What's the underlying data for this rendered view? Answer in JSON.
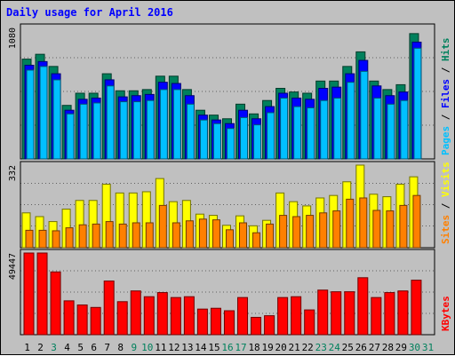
{
  "chart_data": [
    {
      "type": "bar",
      "title": "Daily usage for April 2016",
      "categories": [
        "1",
        "2",
        "3",
        "4",
        "5",
        "6",
        "7",
        "8",
        "9",
        "10",
        "11",
        "12",
        "13",
        "14",
        "15",
        "16",
        "17",
        "18",
        "19",
        "20",
        "21",
        "22",
        "23",
        "24",
        "25",
        "26",
        "27",
        "28",
        "29",
        "30",
        "31"
      ],
      "y_max_label": "1080",
      "ylim": [
        0,
        1080
      ],
      "series": [
        {
          "name": "Hits",
          "color": "#00805c",
          "values": [
            820,
            860,
            760,
            440,
            540,
            540,
            700,
            560,
            560,
            570,
            680,
            680,
            570,
            400,
            360,
            330,
            450,
            370,
            480,
            580,
            550,
            540,
            640,
            640,
            760,
            880,
            640,
            570,
            610,
            1030,
            null
          ]
        },
        {
          "name": "Files",
          "color": "#0000ff",
          "values": [
            770,
            800,
            700,
            400,
            490,
            500,
            650,
            510,
            520,
            530,
            630,
            620,
            520,
            360,
            320,
            290,
            400,
            330,
            430,
            540,
            500,
            490,
            580,
            590,
            700,
            810,
            600,
            520,
            550,
            960,
            null
          ]
        },
        {
          "name": "Pages",
          "color": "#00c0ff",
          "values": [
            730,
            760,
            650,
            370,
            450,
            460,
            600,
            470,
            470,
            480,
            570,
            570,
            450,
            320,
            290,
            250,
            340,
            280,
            380,
            500,
            430,
            420,
            480,
            500,
            630,
            720,
            500,
            450,
            480,
            910,
            null
          ]
        }
      ]
    },
    {
      "type": "bar",
      "categories": [
        "1",
        "2",
        "3",
        "4",
        "5",
        "6",
        "7",
        "8",
        "9",
        "10",
        "11",
        "12",
        "13",
        "14",
        "15",
        "16",
        "17",
        "18",
        "19",
        "20",
        "21",
        "22",
        "23",
        "24",
        "25",
        "26",
        "27",
        "28",
        "29",
        "30",
        "31"
      ],
      "y_max_label": "332",
      "ylim": [
        0,
        332
      ],
      "series": [
        {
          "name": "Visits",
          "color": "#ffff00",
          "values": [
            140,
            125,
            105,
            155,
            190,
            190,
            255,
            220,
            220,
            225,
            278,
            185,
            190,
            135,
            130,
            90,
            128,
            88,
            110,
            220,
            185,
            168,
            200,
            210,
            265,
            332,
            215,
            205,
            255,
            285,
            null
          ]
        },
        {
          "name": "Sites",
          "color": "#ff8000",
          "values": [
            70,
            70,
            68,
            80,
            92,
            95,
            105,
            95,
            100,
            100,
            170,
            100,
            108,
            115,
            112,
            72,
            100,
            60,
            95,
            130,
            125,
            130,
            140,
            148,
            195,
            200,
            150,
            148,
            170,
            210,
            null
          ]
        }
      ]
    },
    {
      "type": "bar",
      "categories": [
        "1",
        "2",
        "3",
        "4",
        "5",
        "6",
        "7",
        "8",
        "9",
        "10",
        "11",
        "12",
        "13",
        "14",
        "15",
        "16",
        "17",
        "18",
        "19",
        "20",
        "21",
        "22",
        "23",
        "24",
        "25",
        "26",
        "27",
        "28",
        "29",
        "30",
        "31"
      ],
      "y_max_label": "49447",
      "ylim": [
        0,
        49447
      ],
      "series": [
        {
          "name": "KBytes",
          "color": "#ff0000",
          "values": [
            49447,
            49447,
            38000,
            20500,
            18000,
            16500,
            32500,
            20000,
            26500,
            23000,
            25500,
            22500,
            23000,
            15500,
            16000,
            14500,
            22500,
            10500,
            11500,
            22500,
            23000,
            15000,
            27000,
            26000,
            26000,
            34500,
            22500,
            25500,
            26500,
            33000,
            null
          ]
        }
      ]
    }
  ],
  "day_label_colors": [
    "#000000",
    "#000000",
    "#00805c",
    "#000000",
    "#000000",
    "#000000",
    "#000000",
    "#000000",
    "#00805c",
    "#00805c",
    "#000000",
    "#000000",
    "#000000",
    "#000000",
    "#000000",
    "#00805c",
    "#00805c",
    "#000000",
    "#000000",
    "#000000",
    "#000000",
    "#000000",
    "#00805c",
    "#00805c",
    "#000000",
    "#000000",
    "#000000",
    "#000000",
    "#000000",
    "#00805c",
    "#00805c"
  ],
  "legend_separator": " / ",
  "panel_fill": "#c0c0c0"
}
